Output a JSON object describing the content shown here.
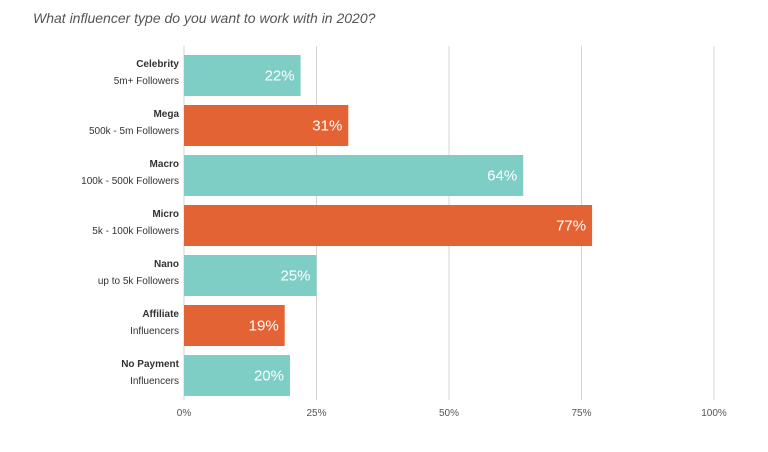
{
  "chart_data": {
    "type": "bar",
    "orientation": "horizontal",
    "title": "What influencer type do you want to work with in 2020?",
    "categories": [
      {
        "name": "Celebrity",
        "detail": "5m+ Followers"
      },
      {
        "name": "Mega",
        "detail": "500k - 5m Followers"
      },
      {
        "name": "Macro",
        "detail": "100k - 500k Followers"
      },
      {
        "name": "Micro",
        "detail": "5k - 100k Followers"
      },
      {
        "name": "Nano",
        "detail": "up to 5k Followers"
      },
      {
        "name": "Affiliate",
        "detail": "Influencers"
      },
      {
        "name": "No Payment",
        "detail": "Influencers"
      }
    ],
    "values": [
      22,
      31,
      64,
      77,
      25,
      19,
      20
    ],
    "value_labels": [
      "22%",
      "31%",
      "64%",
      "77%",
      "25%",
      "19%",
      "20%"
    ],
    "bar_colors": [
      "#7fcec6",
      "#e46334",
      "#7fcec6",
      "#e46334",
      "#7fcec6",
      "#e46334",
      "#7fcec6"
    ],
    "xlim": [
      0,
      100
    ],
    "xticks": [
      0,
      25,
      50,
      75,
      100
    ],
    "xtick_labels": [
      "0%",
      "25%",
      "50%",
      "75%",
      "100%"
    ],
    "xlabel": "",
    "ylabel": "",
    "grid": true,
    "grid_color": "#d4d4d4"
  }
}
